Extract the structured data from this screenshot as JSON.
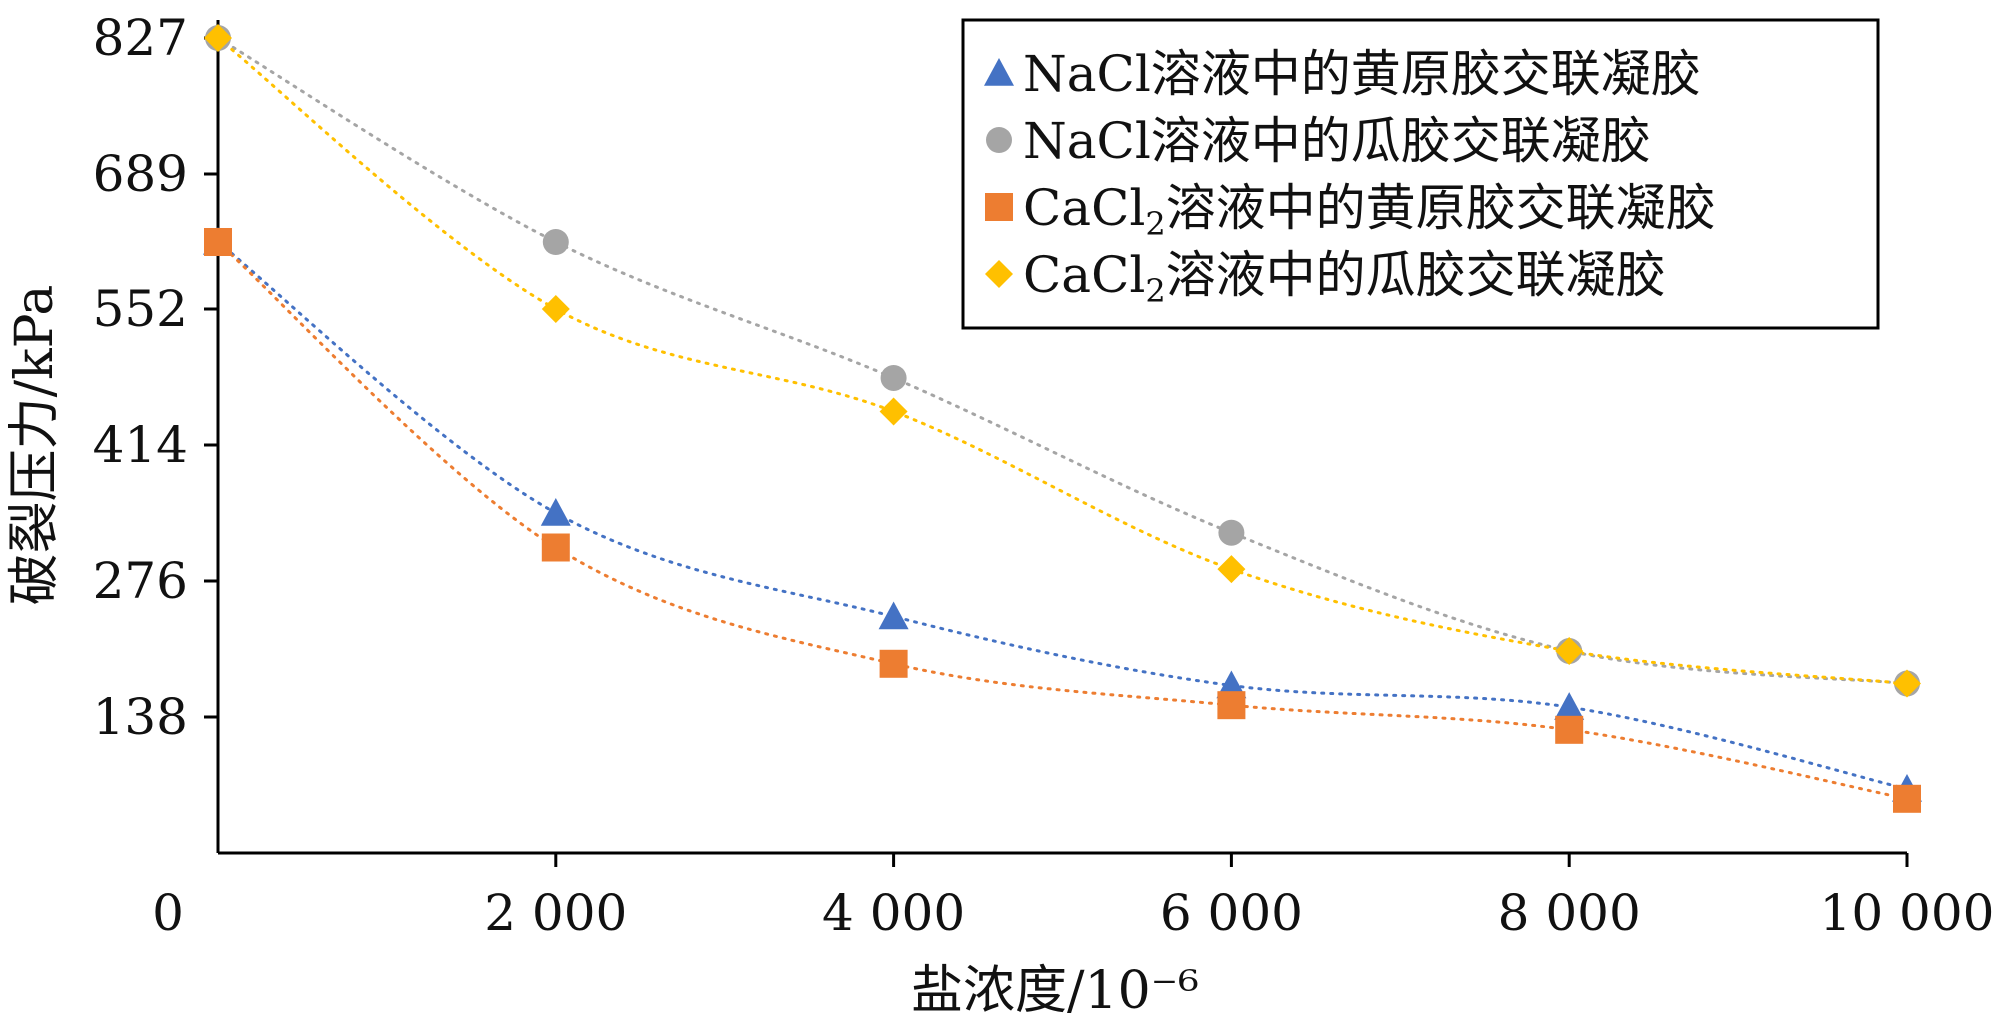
{
  "chart_data": {
    "type": "scatter",
    "xlabel": "盐浓度/10⁻⁶",
    "ylabel": "破裂压力/kPa",
    "xlim": [
      0,
      10000
    ],
    "ylim": [
      0,
      827
    ],
    "x_ticks": [
      "0",
      "2 000",
      "4 000",
      "6 000",
      "8 000",
      "10 000"
    ],
    "x_tick_values": [
      0,
      2000,
      4000,
      6000,
      8000,
      10000
    ],
    "y_ticks": [
      "138",
      "276",
      "414",
      "552",
      "689",
      "827"
    ],
    "y_tick_values": [
      138,
      276,
      414,
      552,
      689,
      827
    ],
    "trendline": "dotted",
    "legend_position": "top-right",
    "series": [
      {
        "name": "NaCl溶液中的黄原胶交联凝胶",
        "legend_main": "NaCl溶液中的黄原胶交联凝胶",
        "marker": "triangle",
        "color": "#4472C4",
        "trend_color": "#4472C4",
        "x": [
          0,
          2000,
          4000,
          6000,
          8000,
          10000
        ],
        "y": [
          620,
          345,
          240,
          170,
          148,
          65
        ]
      },
      {
        "name": "NaCl溶液中的瓜胶交联凝胶",
        "legend_main": "NaCl溶液中的瓜胶交联凝胶",
        "marker": "circle",
        "color": "#A5A5A5",
        "trend_color": "#A5A5A5",
        "x": [
          0,
          2000,
          4000,
          6000,
          8000,
          10000
        ],
        "y": [
          827,
          620,
          482,
          325,
          205,
          172
        ]
      },
      {
        "name": "CaCl2溶液中的黄原胶交联凝胶",
        "legend_main": "CaCl",
        "legend_sub": "2",
        "legend_rest": "溶液中的黄原胶交联凝胶",
        "marker": "square",
        "color": "#ED7D31",
        "trend_color": "#ED7D31",
        "x": [
          0,
          2000,
          4000,
          6000,
          8000,
          10000
        ],
        "y": [
          620,
          310,
          192,
          150,
          125,
          55
        ]
      },
      {
        "name": "CaCl2溶液中的瓜胶交联凝胶",
        "legend_main": "CaCl",
        "legend_sub": "2",
        "legend_rest": "溶液中的瓜胶交联凝胶",
        "marker": "diamond",
        "color": "#FFC000",
        "trend_color": "#FFC000",
        "x": [
          0,
          2000,
          4000,
          6000,
          8000,
          10000
        ],
        "y": [
          827,
          552,
          448,
          288,
          205,
          172
        ]
      }
    ]
  }
}
